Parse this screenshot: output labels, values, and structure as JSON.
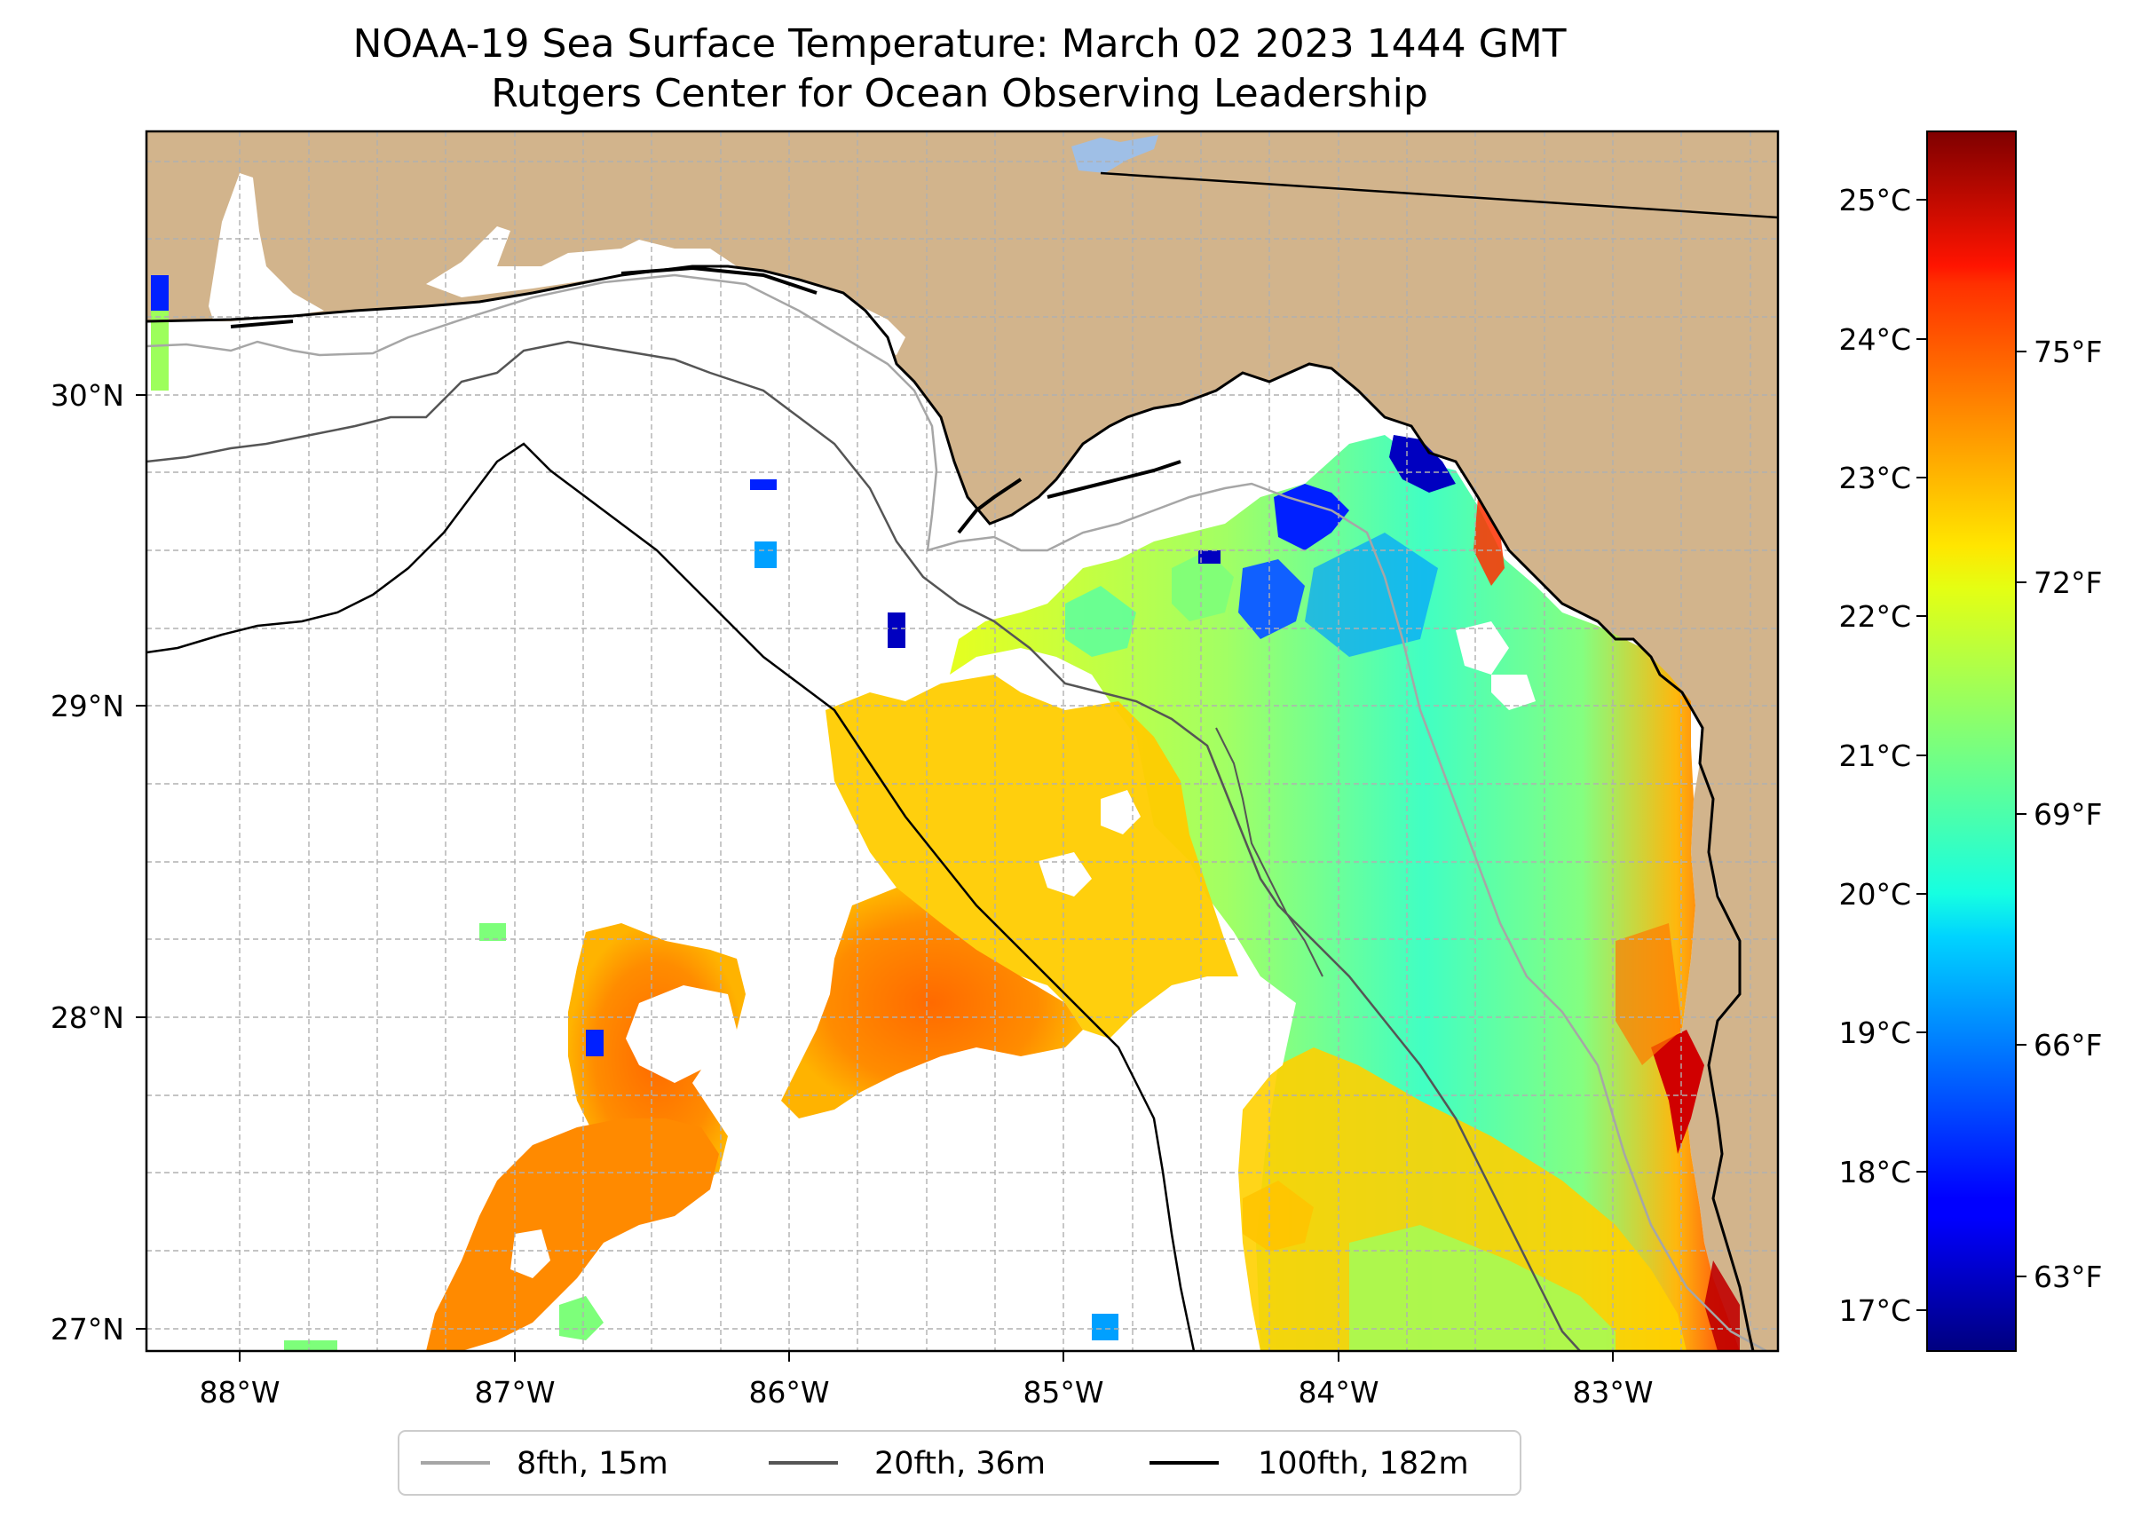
{
  "title": {
    "line1": "NOAA-19 Sea Surface Temperature: March 02 2023 1444 GMT",
    "line2": "Rutgers Center for Ocean Observing Leadership"
  },
  "map": {
    "lon_ticks": [
      "88°W",
      "87°W",
      "86°W",
      "85°W",
      "84°W",
      "83°W"
    ],
    "lat_ticks": [
      "30°N",
      "29°N",
      "28°N",
      "27°N"
    ],
    "lon_range": [
      -88.33,
      -82.4
    ],
    "lat_range": [
      26.93,
      30.85
    ],
    "colors": {
      "land": "#d2b48c",
      "ocean_nodata": "#ffffff",
      "lake": "#9fbfe6",
      "grid": "#b0b0b0"
    }
  },
  "colorbar": {
    "celsius_ticks": [
      "25°C",
      "24°C",
      "23°C",
      "22°C",
      "21°C",
      "20°C",
      "19°C",
      "18°C",
      "17°C"
    ],
    "fahrenheit_ticks": [
      "75°F",
      "72°F",
      "69°F",
      "66°F",
      "63°F"
    ],
    "colormap": "jet"
  },
  "legend": {
    "items": [
      {
        "label": "8fth, 15m",
        "color": "#a6a6a6"
      },
      {
        "label": "20fth, 36m",
        "color": "#555555"
      },
      {
        "label": "100fth, 182m",
        "color": "#000000"
      }
    ]
  }
}
